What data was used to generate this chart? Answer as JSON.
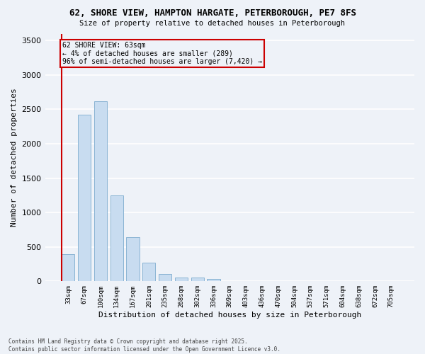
{
  "title1": "62, SHORE VIEW, HAMPTON HARGATE, PETERBOROUGH, PE7 8FS",
  "title2": "Size of property relative to detached houses in Peterborough",
  "xlabel": "Distribution of detached houses by size in Peterborough",
  "ylabel": "Number of detached properties",
  "bar_color": "#c8dcf0",
  "bar_edge_color": "#8ab4d4",
  "annotation_line_color": "#cc0000",
  "annotation_box_color": "#cc0000",
  "annotation_text": "62 SHORE VIEW: 63sqm\n← 4% of detached houses are smaller (289)\n96% of semi-detached houses are larger (7,420) →",
  "property_size": 63,
  "categories": [
    "33sqm",
    "67sqm",
    "100sqm",
    "134sqm",
    "167sqm",
    "201sqm",
    "235sqm",
    "268sqm",
    "302sqm",
    "336sqm",
    "369sqm",
    "403sqm",
    "436sqm",
    "470sqm",
    "504sqm",
    "537sqm",
    "571sqm",
    "604sqm",
    "638sqm",
    "672sqm",
    "705sqm"
  ],
  "values": [
    390,
    2420,
    2620,
    1250,
    640,
    270,
    110,
    55,
    50,
    30,
    5,
    0,
    0,
    0,
    0,
    0,
    0,
    0,
    0,
    0,
    0
  ],
  "ylim": [
    0,
    3600
  ],
  "yticks": [
    0,
    500,
    1000,
    1500,
    2000,
    2500,
    3000,
    3500
  ],
  "background_color": "#eef2f8",
  "grid_color": "#ffffff",
  "footnote": "Contains HM Land Registry data © Crown copyright and database right 2025.\nContains public sector information licensed under the Open Government Licence v3.0."
}
